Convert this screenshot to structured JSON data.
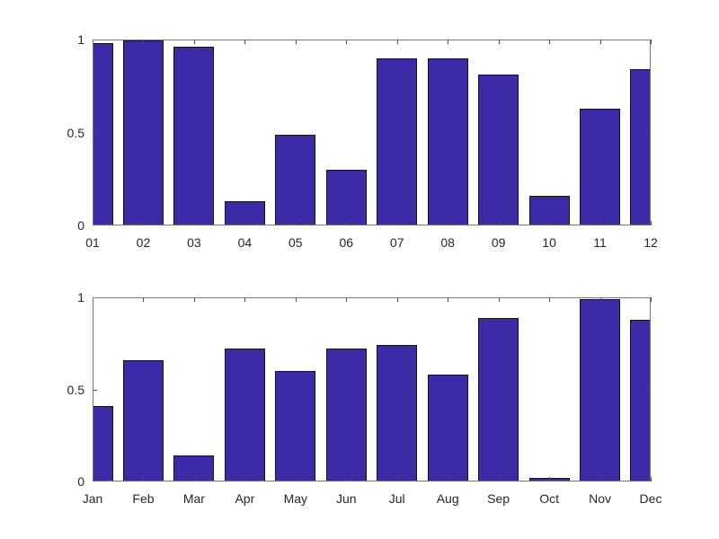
{
  "figure": {
    "background": "#ffffff"
  },
  "chart_data": [
    {
      "type": "bar",
      "title": "",
      "xlabel": "",
      "ylabel": "",
      "categories": [
        "01",
        "02",
        "03",
        "04",
        "05",
        "06",
        "07",
        "08",
        "09",
        "10",
        "11",
        "12"
      ],
      "values": [
        0.98,
        0.995,
        0.96,
        0.13,
        0.49,
        0.3,
        0.9,
        0.9,
        0.81,
        0.16,
        0.63,
        0.84
      ],
      "ylim": [
        0,
        1
      ],
      "yticks": [
        0,
        0.5,
        1
      ],
      "ytick_labels": [
        "0",
        "0.5",
        "1"
      ],
      "xlim_clips_end_bars": true,
      "bar_width_fraction": 0.8,
      "grid": false,
      "legend_position": "none",
      "bar_color": "#3C2BA6",
      "bar_edge_color": "#141414",
      "axis_frame_color": "#767676",
      "tick_mark_color": "#4a4a4a",
      "tick_label_color": "#262626"
    },
    {
      "type": "bar",
      "title": "",
      "xlabel": "",
      "ylabel": "",
      "categories": [
        "Jan",
        "Feb",
        "Mar",
        "Apr",
        "May",
        "Jun",
        "Jul",
        "Aug",
        "Sep",
        "Oct",
        "Nov",
        "Dec"
      ],
      "values": [
        0.41,
        0.66,
        0.14,
        0.72,
        0.6,
        0.72,
        0.74,
        0.58,
        0.89,
        0.02,
        0.99,
        0.88
      ],
      "ylim": [
        0,
        1
      ],
      "yticks": [
        0,
        0.5,
        1
      ],
      "ytick_labels": [
        "0",
        "0.5",
        "1"
      ],
      "xlim_clips_end_bars": true,
      "bar_width_fraction": 0.8,
      "grid": false,
      "legend_position": "none",
      "bar_color": "#3C2BA6",
      "bar_edge_color": "#141414",
      "axis_frame_color": "#767676",
      "tick_mark_color": "#4a4a4a",
      "tick_label_color": "#262626"
    }
  ]
}
